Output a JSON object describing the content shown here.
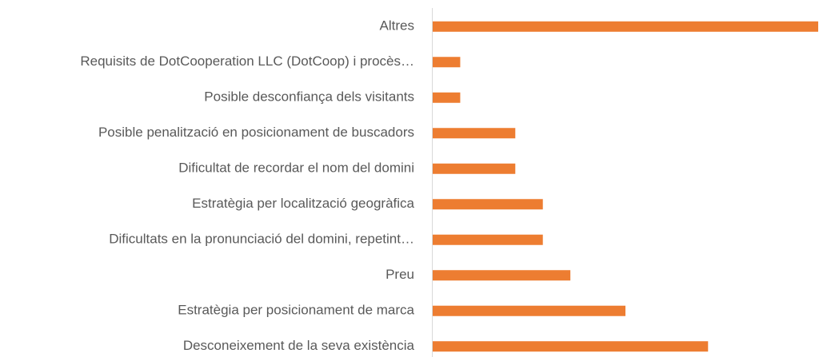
{
  "chart_data": {
    "type": "barh",
    "categories": [
      "Altres",
      "Requisits de DotCooperation LLC (DotCoop) i procès…",
      "Posible desconfiança dels visitants",
      "Posible penalització en posicionament de buscadors",
      "Dificultat de recordar el nom del domini",
      "Estratègia per localització geogràfica",
      "Dificultats en la pronunciació del domini, repetint…",
      "Preu",
      "Estratègia per posicionament de marca",
      "Desconeixement de la seva existència"
    ],
    "values": [
      14,
      1,
      1,
      3,
      3,
      4,
      4,
      5,
      7,
      10
    ],
    "color": "#ed7d31",
    "xlim": [
      0,
      14
    ]
  }
}
